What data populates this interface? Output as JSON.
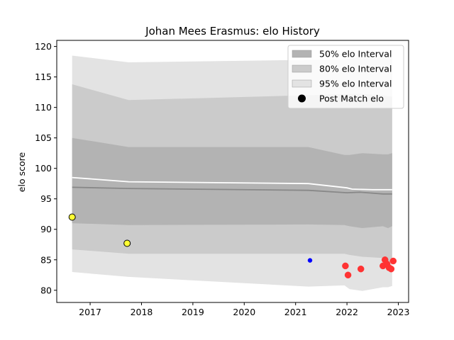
{
  "chart_data": {
    "type": "line",
    "title": "Johan Mees Erasmus: elo History",
    "xlabel": "",
    "ylabel": "elo score",
    "xlim": [
      2016.35,
      2023.2
    ],
    "ylim": [
      78,
      121
    ],
    "x_ticks": [
      2017,
      2018,
      2019,
      2020,
      2021,
      2022,
      2023
    ],
    "y_ticks": [
      80,
      85,
      90,
      95,
      100,
      105,
      110,
      115,
      120
    ],
    "grid": false,
    "legend_position": "top-right",
    "bands": [
      {
        "name": "95% elo Interval",
        "color": "#e3e3e3",
        "x": [
          2016.65,
          2017.75,
          2021.25,
          2021.95,
          2022.05,
          2022.3,
          2022.7,
          2022.8,
          2022.88
        ],
        "upper": [
          118.5,
          117.4,
          117.8,
          117.8,
          118.0,
          118.3,
          118.2,
          118.2,
          118.2
        ],
        "lower": [
          83.0,
          82.2,
          80.6,
          80.8,
          80.2,
          79.9,
          80.5,
          80.5,
          80.7
        ]
      },
      {
        "name": "80% elo Interval",
        "color": "#cbcbcb",
        "x": [
          2016.65,
          2017.75,
          2021.25,
          2021.95,
          2022.05,
          2022.3,
          2022.7,
          2022.8,
          2022.88
        ],
        "upper": [
          113.8,
          111.2,
          112.0,
          112.2,
          112.2,
          112.2,
          112.0,
          111.8,
          111.8
        ],
        "lower": [
          86.7,
          86.0,
          86.0,
          86.0,
          85.8,
          85.5,
          85.3,
          84.5,
          84.8
        ]
      },
      {
        "name": "50% elo Interval",
        "color": "#b3b3b3",
        "x": [
          2016.65,
          2017.75,
          2021.25,
          2021.95,
          2022.05,
          2022.3,
          2022.7,
          2022.8,
          2022.88
        ],
        "upper": [
          105.0,
          103.5,
          103.5,
          102.2,
          102.2,
          102.5,
          102.3,
          102.3,
          102.5
        ],
        "lower": [
          91.0,
          90.7,
          90.8,
          90.7,
          90.5,
          90.2,
          90.5,
          90.2,
          90.5
        ]
      }
    ],
    "lines": [
      {
        "name": "",
        "color": "#888888",
        "x": [
          2016.65,
          2017.75,
          2021.25,
          2022.0,
          2022.25,
          2022.7,
          2022.88
        ],
        "y": [
          96.9,
          96.7,
          96.4,
          96.0,
          96.1,
          95.8,
          95.8
        ]
      },
      {
        "name": "",
        "color": "#ffffff",
        "x": [
          2016.65,
          2017.75,
          2021.25,
          2022.0,
          2022.1,
          2022.5,
          2022.88
        ],
        "y": [
          98.5,
          97.8,
          97.5,
          96.8,
          96.6,
          96.5,
          96.5
        ]
      }
    ],
    "points": [
      {
        "x": 2016.65,
        "y": 92.0,
        "color": "#ffff33",
        "edge": "#000000",
        "size": "large"
      },
      {
        "x": 2017.72,
        "y": 87.7,
        "color": "#ffff33",
        "edge": "#000000",
        "size": "large"
      },
      {
        "x": 2021.28,
        "y": 84.9,
        "color": "#0000ff",
        "edge": "#0000ff",
        "size": "small"
      },
      {
        "x": 2021.97,
        "y": 84.0,
        "color": "#ff3333",
        "edge": "#ff3333",
        "size": "large"
      },
      {
        "x": 2022.02,
        "y": 82.5,
        "color": "#ff3333",
        "edge": "#ff3333",
        "size": "large"
      },
      {
        "x": 2022.27,
        "y": 83.5,
        "color": "#ff3333",
        "edge": "#ff3333",
        "size": "large"
      },
      {
        "x": 2022.7,
        "y": 84.0,
        "color": "#ff3333",
        "edge": "#ff3333",
        "size": "large"
      },
      {
        "x": 2022.74,
        "y": 85.0,
        "color": "#ff3333",
        "edge": "#ff3333",
        "size": "large"
      },
      {
        "x": 2022.78,
        "y": 84.3,
        "color": "#ff3333",
        "edge": "#ff3333",
        "size": "large"
      },
      {
        "x": 2022.82,
        "y": 83.7,
        "color": "#ff3333",
        "edge": "#ff3333",
        "size": "large"
      },
      {
        "x": 2022.86,
        "y": 83.5,
        "color": "#ff3333",
        "edge": "#ff3333",
        "size": "large"
      },
      {
        "x": 2022.9,
        "y": 84.8,
        "color": "#ff3333",
        "edge": "#ff3333",
        "size": "large"
      }
    ],
    "legend": [
      {
        "label": "50% elo Interval",
        "kind": "patch",
        "color": "#b3b3b3"
      },
      {
        "label": "80% elo Interval",
        "kind": "patch",
        "color": "#cbcbcb"
      },
      {
        "label": "95% elo Interval",
        "kind": "patch",
        "color": "#e3e3e3"
      },
      {
        "label": "Post Match elo",
        "kind": "marker",
        "color": "#000000"
      }
    ]
  }
}
